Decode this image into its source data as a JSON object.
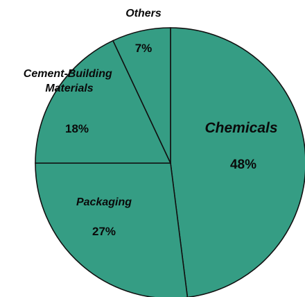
{
  "chart_data": {
    "type": "pie",
    "categories": [
      "Chemicals",
      "Packaging",
      "Cement-Building Materials",
      "Others"
    ],
    "values": [
      48,
      27,
      18,
      7
    ],
    "value_labels": [
      "48%",
      "27%",
      "18%",
      "7%"
    ],
    "colors": [
      "#359d84",
      "#359d84",
      "#359d84",
      "#359d84"
    ],
    "edge_color": "#111111",
    "legend": "none"
  }
}
